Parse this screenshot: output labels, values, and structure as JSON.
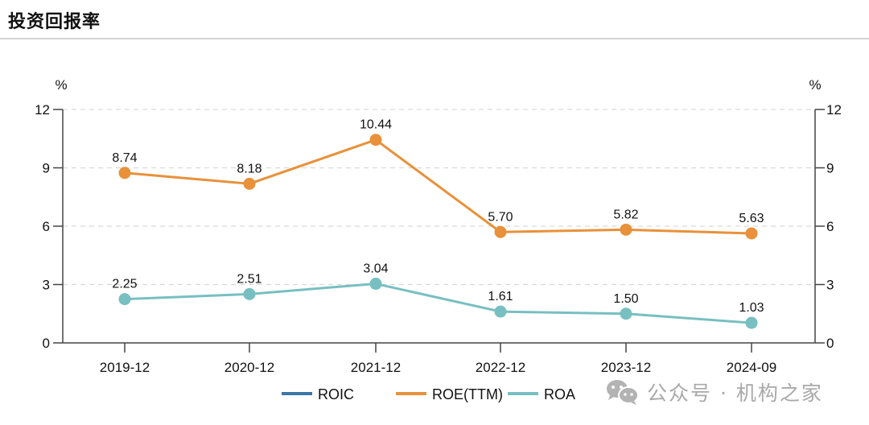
{
  "header": {
    "title": "投资回报率"
  },
  "watermark": {
    "icon": "wechat-icon",
    "text": "公众号 · 机构之家"
  },
  "chart_data": {
    "type": "line",
    "title": "投资回报率",
    "xlabel": "",
    "ylabel": "%",
    "ylabel_right": "%",
    "categories": [
      "2019-12",
      "2020-12",
      "2021-12",
      "2022-12",
      "2023-12",
      "2024-09"
    ],
    "ylim": [
      0,
      12
    ],
    "yticks": [
      0,
      3,
      6,
      9,
      12
    ],
    "grid": "horizontal dashed",
    "legend_position": "bottom",
    "series": [
      {
        "name": "ROIC",
        "color": "#3b75a6",
        "values": []
      },
      {
        "name": "ROE(TTM)",
        "color": "#e8913a",
        "values": [
          8.74,
          8.18,
          10.44,
          5.7,
          5.82,
          5.63
        ],
        "labels": [
          "8.74",
          "8.18",
          "10.44",
          "5.70",
          "5.82",
          "5.63"
        ]
      },
      {
        "name": "ROA",
        "color": "#78bfc1",
        "values": [
          2.25,
          2.51,
          3.04,
          1.61,
          1.5,
          1.03
        ],
        "labels": [
          "2.25",
          "2.51",
          "3.04",
          "1.61",
          "1.50",
          "1.03"
        ]
      }
    ]
  }
}
